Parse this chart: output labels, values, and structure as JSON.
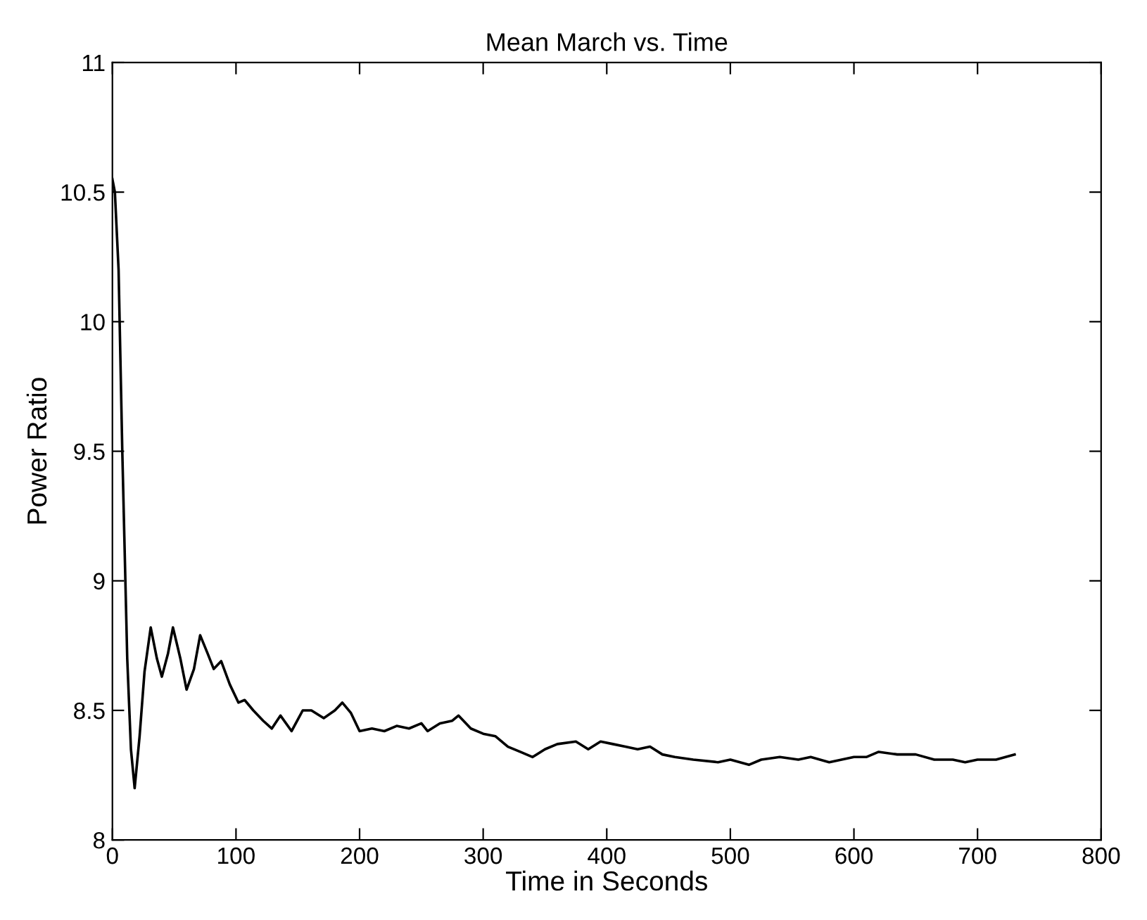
{
  "chart_data": {
    "type": "line",
    "title": "Mean March vs. Time",
    "xlabel": "Time in Seconds",
    "ylabel": "Power Ratio",
    "xlim": [
      0,
      800
    ],
    "ylim": [
      8,
      11
    ],
    "xticks": [
      0,
      100,
      200,
      300,
      400,
      500,
      600,
      700,
      800
    ],
    "yticks": [
      8,
      8.5,
      9,
      9.5,
      10,
      10.5,
      11
    ],
    "grid": false,
    "marker": "none",
    "line_style": "solid",
    "series": [
      {
        "color": "#000000",
        "x": [
          0,
          2,
          5,
          8,
          12,
          15,
          18,
          22,
          26,
          31,
          36,
          40,
          45,
          49,
          55,
          60,
          66,
          71,
          77,
          82,
          88,
          95,
          102,
          107,
          114,
          122,
          129,
          136,
          145,
          154,
          161,
          171,
          180,
          186,
          193,
          200,
          210,
          220,
          230,
          240,
          250,
          255,
          265,
          275,
          280,
          290,
          300,
          310,
          320,
          330,
          340,
          350,
          360,
          375,
          385,
          395,
          405,
          415,
          425,
          435,
          445,
          455,
          470,
          490,
          500,
          515,
          525,
          540,
          555,
          565,
          580,
          590,
          600,
          610,
          620,
          635,
          650,
          665,
          680,
          690,
          700,
          715,
          730
        ],
        "values": [
          10.55,
          10.5,
          10.2,
          9.5,
          8.7,
          8.35,
          8.2,
          8.4,
          8.65,
          8.82,
          8.7,
          8.63,
          8.72,
          8.82,
          8.7,
          8.58,
          8.66,
          8.79,
          8.72,
          8.66,
          8.69,
          8.6,
          8.53,
          8.54,
          8.5,
          8.46,
          8.43,
          8.48,
          8.42,
          8.5,
          8.5,
          8.47,
          8.5,
          8.53,
          8.49,
          8.42,
          8.43,
          8.42,
          8.44,
          8.43,
          8.45,
          8.42,
          8.45,
          8.46,
          8.48,
          8.43,
          8.41,
          8.4,
          8.36,
          8.34,
          8.32,
          8.35,
          8.37,
          8.38,
          8.35,
          8.38,
          8.37,
          8.36,
          8.35,
          8.36,
          8.33,
          8.32,
          8.31,
          8.3,
          8.31,
          8.29,
          8.31,
          8.32,
          8.31,
          8.32,
          8.3,
          8.31,
          8.32,
          8.32,
          8.34,
          8.33,
          8.33,
          8.31,
          8.31,
          8.3,
          8.31,
          8.31,
          8.33
        ]
      }
    ]
  }
}
